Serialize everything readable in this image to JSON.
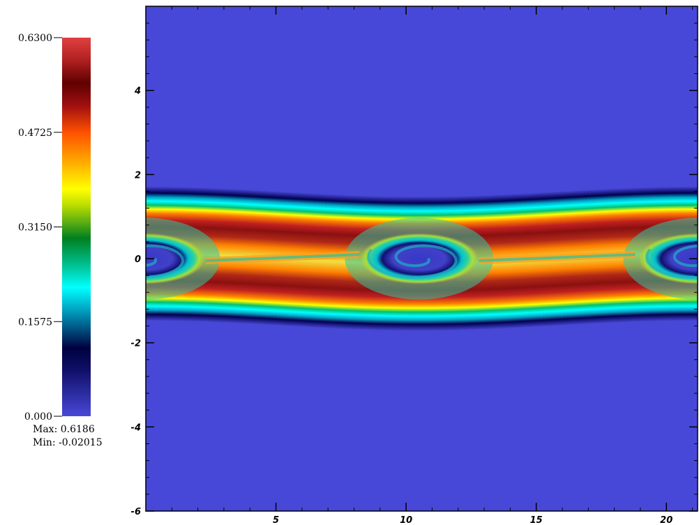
{
  "chart_data": {
    "type": "heatmap",
    "title": "",
    "xlabel": "",
    "ylabel": "",
    "xlim": [
      0,
      21.2
    ],
    "ylim": [
      -6,
      6
    ],
    "x_ticks": [
      5,
      10,
      15,
      20
    ],
    "y_ticks": [
      -6,
      -4,
      -2,
      0,
      2,
      4
    ],
    "x_tick_labels": [
      "5",
      "10",
      "15",
      "20"
    ],
    "y_tick_labels": [
      "-6",
      "-4",
      "-2",
      "0",
      "2",
      "4"
    ],
    "colorbar": {
      "min": 0.0,
      "max": 0.63,
      "tick_values": [
        0.0,
        0.1575,
        0.315,
        0.4725,
        0.63
      ],
      "tick_labels": [
        "0.000",
        "0.1575",
        "0.3150",
        "0.4725",
        "0.6300"
      ],
      "colormap": [
        "#4848d8",
        "#000040",
        "#00ffff",
        "#00a060",
        "#ffff00",
        "#ff8000",
        "#600000",
        "#e04040"
      ]
    },
    "stats": {
      "max_label": "Max:",
      "max_value": "0.6186",
      "min_label": "Min:",
      "min_value": "-0.02015"
    },
    "field_description": {
      "background_value": 0.0,
      "layer_peak_value": 0.6186,
      "vortex_centers_x": [
        0.0,
        10.5,
        21.2
      ],
      "vortex_center_y": 0.0,
      "vortex_half_width": 2.4,
      "vortex_half_height": 0.45,
      "layer_half_thickness": 1.35
    }
  }
}
